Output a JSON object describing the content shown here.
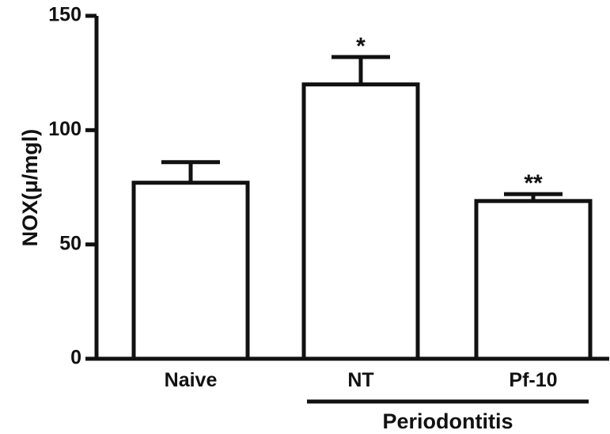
{
  "chart_data": {
    "type": "bar",
    "title": "",
    "ylabel": "NOX(μ/mgl)",
    "xlabel": "",
    "ylim": [
      0,
      150
    ],
    "yticks": [
      0,
      50,
      100,
      150
    ],
    "categories": [
      "Naive",
      "NT",
      "Pf-10"
    ],
    "values": [
      77,
      120,
      69
    ],
    "errors": [
      9,
      12,
      3
    ],
    "significance": [
      "",
      "*",
      "**"
    ],
    "group": {
      "label": "Periodontitis",
      "categories": [
        "NT",
        "Pf-10"
      ]
    },
    "bar_fill": "#ffffff",
    "stroke_color": "#111111",
    "grid": false
  }
}
